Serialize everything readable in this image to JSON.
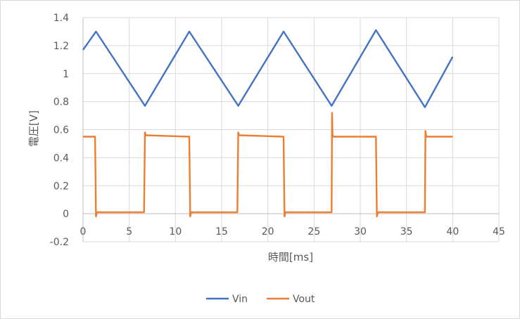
{
  "chart_data": {
    "type": "line",
    "title": "",
    "xlabel": "時間[ms]",
    "ylabel": "電圧[V]",
    "xlim": [
      0,
      45
    ],
    "ylim": [
      -0.2,
      1.4
    ],
    "x_ticks": [
      0,
      5,
      10,
      15,
      20,
      25,
      30,
      35,
      40,
      45
    ],
    "y_ticks": [
      -0.2,
      0,
      0.2,
      0.4,
      0.6,
      0.8,
      1,
      1.2,
      1.4
    ],
    "x_tick_labels": [
      "0",
      "5",
      "10",
      "15",
      "20",
      "25",
      "30",
      "35",
      "40",
      "45"
    ],
    "y_tick_labels": [
      "-0.2",
      "0",
      "0.2",
      "0.4",
      "0.6",
      "0.8",
      "1",
      "1.2",
      "1.4"
    ],
    "grid": "vertical and horizontal gridlines",
    "legend_position": "bottom",
    "series": [
      {
        "name": "Vin",
        "color": "#4472c4",
        "x": [
          0,
          1.4,
          6.7,
          11.5,
          16.8,
          21.7,
          26.9,
          31.7,
          37.0,
          40.0
        ],
        "y": [
          1.17,
          1.3,
          0.77,
          1.3,
          0.77,
          1.3,
          0.77,
          1.31,
          0.76,
          1.12
        ]
      },
      {
        "name": "Vout",
        "color": "#ed7d31",
        "x": [
          0,
          1.3,
          1.4,
          1.5,
          6.6,
          6.7,
          6.8,
          11.5,
          11.6,
          11.7,
          16.7,
          16.8,
          16.9,
          21.7,
          21.8,
          21.9,
          26.9,
          26.95,
          27.0,
          27.1,
          31.7,
          31.8,
          31.9,
          37.0,
          37.05,
          37.15,
          40.0
        ],
        "y": [
          0.55,
          0.55,
          -0.02,
          0.01,
          0.01,
          0.58,
          0.56,
          0.55,
          -0.02,
          0.01,
          0.01,
          0.58,
          0.56,
          0.55,
          -0.02,
          0.01,
          0.01,
          0.72,
          0.56,
          0.55,
          0.55,
          -0.02,
          0.01,
          0.01,
          0.59,
          0.55,
          0.55
        ]
      }
    ]
  }
}
